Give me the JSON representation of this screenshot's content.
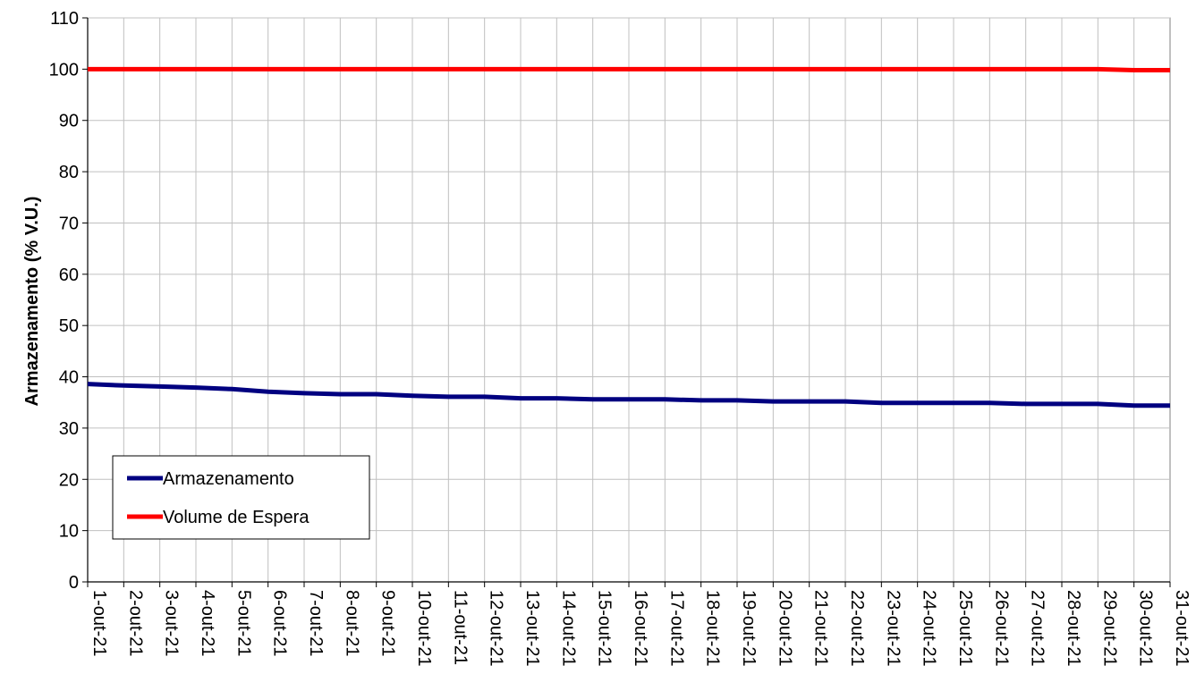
{
  "chart_data": {
    "type": "line",
    "title": "",
    "xlabel": "",
    "ylabel": "Armazenamento (% V.U.)",
    "ylim": [
      0,
      110
    ],
    "yticks": [
      0,
      10,
      20,
      30,
      40,
      50,
      60,
      70,
      80,
      90,
      100,
      110
    ],
    "grid": true,
    "legend_position": "bottom-left",
    "categories": [
      "1-out-21",
      "2-out-21",
      "3-out-21",
      "4-out-21",
      "5-out-21",
      "6-out-21",
      "7-out-21",
      "8-out-21",
      "9-out-21",
      "10-out-21",
      "11-out-21",
      "12-out-21",
      "13-out-21",
      "14-out-21",
      "15-out-21",
      "16-out-21",
      "17-out-21",
      "18-out-21",
      "19-out-21",
      "20-out-21",
      "21-out-21",
      "22-out-21",
      "23-out-21",
      "24-out-21",
      "25-out-21",
      "26-out-21",
      "27-out-21",
      "28-out-21",
      "29-out-21",
      "30-out-21",
      "31-out-21"
    ],
    "series": [
      {
        "name": "Armazenamento",
        "color": "#000080",
        "values": [
          38.6,
          38.3,
          38.1,
          37.9,
          37.6,
          37.1,
          36.8,
          36.6,
          36.6,
          36.3,
          36.1,
          36.1,
          35.8,
          35.8,
          35.6,
          35.6,
          35.6,
          35.4,
          35.4,
          35.2,
          35.2,
          35.2,
          34.9,
          34.9,
          34.9,
          34.9,
          34.7,
          34.7,
          34.7,
          34.4,
          34.4
        ]
      },
      {
        "name": "Volume de Espera",
        "color": "#ff0000",
        "values": [
          100,
          100,
          100,
          100,
          100,
          100,
          100,
          100,
          100,
          100,
          100,
          100,
          100,
          100,
          100,
          100,
          100,
          100,
          100,
          100,
          100,
          100,
          100,
          100,
          100,
          100,
          100,
          100,
          100,
          99.8,
          99.8
        ]
      }
    ]
  }
}
